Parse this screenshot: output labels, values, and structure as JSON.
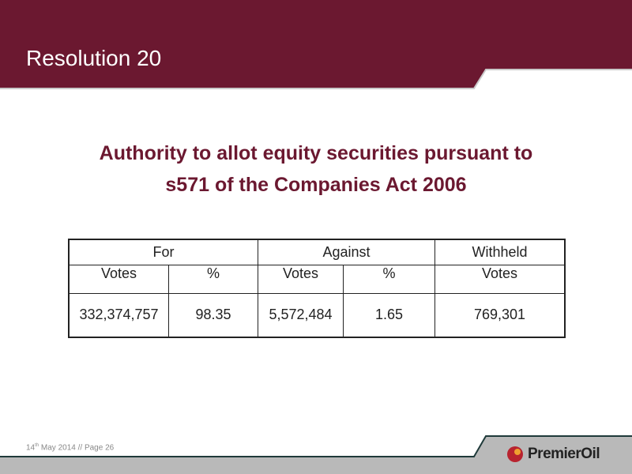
{
  "header": {
    "title": "Resolution 20"
  },
  "subtitle": {
    "lines": [
      "Authority to allot equity securities pursuant to",
      "s571 of the Companies Act 2006"
    ]
  },
  "table": {
    "groups": [
      "For",
      "Against",
      "Withheld"
    ],
    "subheaders": [
      "Votes",
      "%",
      "Votes",
      "%",
      "Votes"
    ],
    "rows": [
      [
        "332,374,757",
        "98.35",
        "5,572,484",
        "1.65",
        "769,301"
      ]
    ]
  },
  "footer": {
    "day": "14",
    "day_suffix": "th",
    "rest": " May 2014 // Page 26",
    "logo": "PremierOil"
  }
}
